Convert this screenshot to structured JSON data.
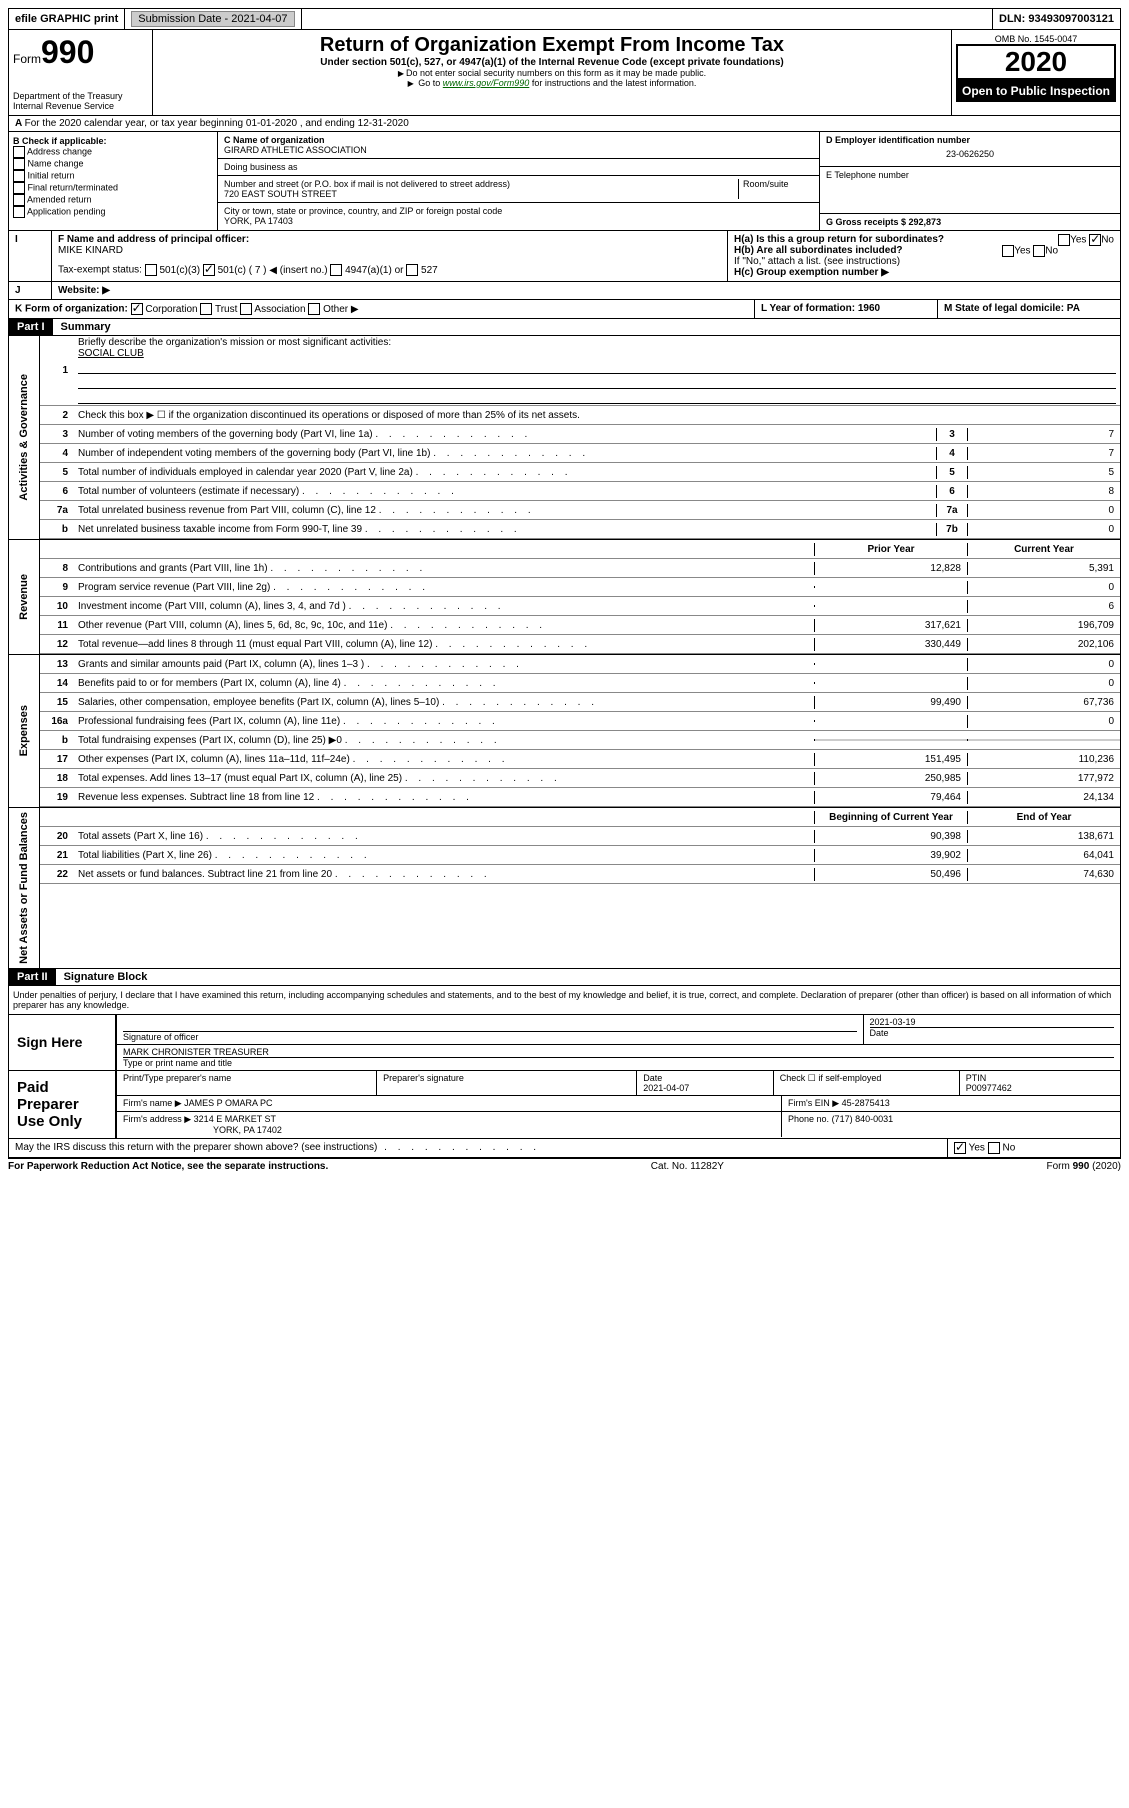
{
  "topbar": {
    "efile": "efile GRAPHIC print",
    "submission_label": "Submission Date - 2021-04-07",
    "dln": "DLN: 93493097003121"
  },
  "header": {
    "form_prefix": "Form",
    "form_num": "990",
    "dept": "Department of the Treasury",
    "irs": "Internal Revenue Service",
    "title": "Return of Organization Exempt From Income Tax",
    "subtitle": "Under section 501(c), 527, or 4947(a)(1) of the Internal Revenue Code (except private foundations)",
    "note1": "Do not enter social security numbers on this form as it may be made public.",
    "note2_pre": "Go to ",
    "note2_link": "www.irs.gov/Form990",
    "note2_post": " for instructions and the latest information.",
    "omb": "OMB No. 1545-0047",
    "year": "2020",
    "inspection": "Open to Public Inspection"
  },
  "section_a": "For the 2020 calendar year, or tax year beginning 01-01-2020    , and ending 12-31-2020",
  "section_b": {
    "label": "B Check if applicable:",
    "items": [
      "Address change",
      "Name change",
      "Initial return",
      "Final return/terminated",
      "Amended return",
      "Application pending"
    ]
  },
  "section_c": {
    "name_label": "C Name of organization",
    "name": "GIRARD ATHLETIC ASSOCIATION",
    "dba_label": "Doing business as",
    "street_label": "Number and street (or P.O. box if mail is not delivered to street address)",
    "room_label": "Room/suite",
    "street": "720 EAST SOUTH STREET",
    "city_label": "City or town, state or province, country, and ZIP or foreign postal code",
    "city": "YORK, PA  17403"
  },
  "section_d": {
    "label": "D Employer identification number",
    "value": "23-0626250"
  },
  "section_e": {
    "label": "E Telephone number"
  },
  "section_g": {
    "label": "G Gross receipts $ 292,873"
  },
  "section_f": {
    "label": "F  Name and address of principal officer:",
    "name": "MIKE KINARD"
  },
  "section_h": {
    "a": "H(a)  Is this a group return for subordinates?",
    "b": "H(b)  Are all subordinates included?",
    "b_note": "If \"No,\" attach a list. (see instructions)",
    "c": "H(c)  Group exemption number ▶",
    "yes": "Yes",
    "no": "No"
  },
  "section_i": {
    "label": "Tax-exempt status:",
    "opts": [
      "501(c)(3)",
      "501(c) ( 7 ) ◀ (insert no.)",
      "4947(a)(1) or",
      "527"
    ]
  },
  "section_j": {
    "label": "Website: ▶"
  },
  "section_k": {
    "label": "K Form of organization:",
    "opts": [
      "Corporation",
      "Trust",
      "Association",
      "Other ▶"
    ]
  },
  "section_l": {
    "label": "L Year of formation: 1960"
  },
  "section_m": {
    "label": "M State of legal domicile: PA"
  },
  "part1": {
    "header": "Part I",
    "title": "Summary",
    "labels": {
      "gov": "Activities & Governance",
      "rev": "Revenue",
      "exp": "Expenses",
      "net": "Net Assets or Fund Balances"
    },
    "line1": "Briefly describe the organization's mission or most significant activities:",
    "line1_val": "SOCIAL CLUB",
    "line2": "Check this box ▶ ☐  if the organization discontinued its operations or disposed of more than 25% of its net assets.",
    "gov_lines": [
      {
        "n": "3",
        "d": "Number of voting members of the governing body (Part VI, line 1a)",
        "b": "3",
        "v": "7"
      },
      {
        "n": "4",
        "d": "Number of independent voting members of the governing body (Part VI, line 1b)",
        "b": "4",
        "v": "7"
      },
      {
        "n": "5",
        "d": "Total number of individuals employed in calendar year 2020 (Part V, line 2a)",
        "b": "5",
        "v": "5"
      },
      {
        "n": "6",
        "d": "Total number of volunteers (estimate if necessary)",
        "b": "6",
        "v": "8"
      },
      {
        "n": "7a",
        "d": "Total unrelated business revenue from Part VIII, column (C), line 12",
        "b": "7a",
        "v": "0"
      },
      {
        "n": "b",
        "d": "Net unrelated business taxable income from Form 990-T, line 39",
        "b": "7b",
        "v": "0"
      }
    ],
    "col_prior": "Prior Year",
    "col_current": "Current Year",
    "rev_lines": [
      {
        "n": "8",
        "d": "Contributions and grants (Part VIII, line 1h)",
        "p": "12,828",
        "c": "5,391"
      },
      {
        "n": "9",
        "d": "Program service revenue (Part VIII, line 2g)",
        "p": "",
        "c": "0"
      },
      {
        "n": "10",
        "d": "Investment income (Part VIII, column (A), lines 3, 4, and 7d )",
        "p": "",
        "c": "6"
      },
      {
        "n": "11",
        "d": "Other revenue (Part VIII, column (A), lines 5, 6d, 8c, 9c, 10c, and 11e)",
        "p": "317,621",
        "c": "196,709"
      },
      {
        "n": "12",
        "d": "Total revenue—add lines 8 through 11 (must equal Part VIII, column (A), line 12)",
        "p": "330,449",
        "c": "202,106"
      }
    ],
    "exp_lines": [
      {
        "n": "13",
        "d": "Grants and similar amounts paid (Part IX, column (A), lines 1–3 )",
        "p": "",
        "c": "0"
      },
      {
        "n": "14",
        "d": "Benefits paid to or for members (Part IX, column (A), line 4)",
        "p": "",
        "c": "0"
      },
      {
        "n": "15",
        "d": "Salaries, other compensation, employee benefits (Part IX, column (A), lines 5–10)",
        "p": "99,490",
        "c": "67,736"
      },
      {
        "n": "16a",
        "d": "Professional fundraising fees (Part IX, column (A), line 11e)",
        "p": "",
        "c": "0"
      },
      {
        "n": "b",
        "d": "Total fundraising expenses (Part IX, column (D), line 25) ▶0",
        "p": "SHADE",
        "c": "SHADE"
      },
      {
        "n": "17",
        "d": "Other expenses (Part IX, column (A), lines 11a–11d, 11f–24e)",
        "p": "151,495",
        "c": "110,236"
      },
      {
        "n": "18",
        "d": "Total expenses. Add lines 13–17 (must equal Part IX, column (A), line 25)",
        "p": "250,985",
        "c": "177,972"
      },
      {
        "n": "19",
        "d": "Revenue less expenses. Subtract line 18 from line 12",
        "p": "79,464",
        "c": "24,134"
      }
    ],
    "col_begin": "Beginning of Current Year",
    "col_end": "End of Year",
    "net_lines": [
      {
        "n": "20",
        "d": "Total assets (Part X, line 16)",
        "p": "90,398",
        "c": "138,671"
      },
      {
        "n": "21",
        "d": "Total liabilities (Part X, line 26)",
        "p": "39,902",
        "c": "64,041"
      },
      {
        "n": "22",
        "d": "Net assets or fund balances. Subtract line 21 from line 20",
        "p": "50,496",
        "c": "74,630"
      }
    ]
  },
  "part2": {
    "header": "Part II",
    "title": "Signature Block",
    "declaration": "Under penalties of perjury, I declare that I have examined this return, including accompanying schedules and statements, and to the best of my knowledge and belief, it is true, correct, and complete. Declaration of preparer (other than officer) is based on all information of which preparer has any knowledge.",
    "sign_here": "Sign Here",
    "sig_officer": "Signature of officer",
    "sig_date": "2021-03-19",
    "date_label": "Date",
    "officer_name": "MARK CHRONISTER  TREASURER",
    "type_label": "Type or print name and title",
    "paid": "Paid Preparer Use Only",
    "prep_name_label": "Print/Type preparer's name",
    "prep_sig_label": "Preparer's signature",
    "prep_date": "2021-04-07",
    "check_label": "Check ☐ if self-employed",
    "ptin_label": "PTIN",
    "ptin": "P00977462",
    "firm_name_label": "Firm's name    ▶",
    "firm_name": "JAMES P OMARA PC",
    "firm_ein_label": "Firm's EIN ▶",
    "firm_ein": "45-2875413",
    "firm_addr_label": "Firm's address ▶",
    "firm_addr": "3214 E MARKET ST",
    "firm_city": "YORK, PA  17402",
    "phone_label": "Phone no.",
    "phone": "(717) 840-0031",
    "discuss": "May the IRS discuss this return with the preparer shown above? (see instructions)"
  },
  "footer": {
    "left": "For Paperwork Reduction Act Notice, see the separate instructions.",
    "mid": "Cat. No. 11282Y",
    "right": "Form 990 (2020)"
  }
}
